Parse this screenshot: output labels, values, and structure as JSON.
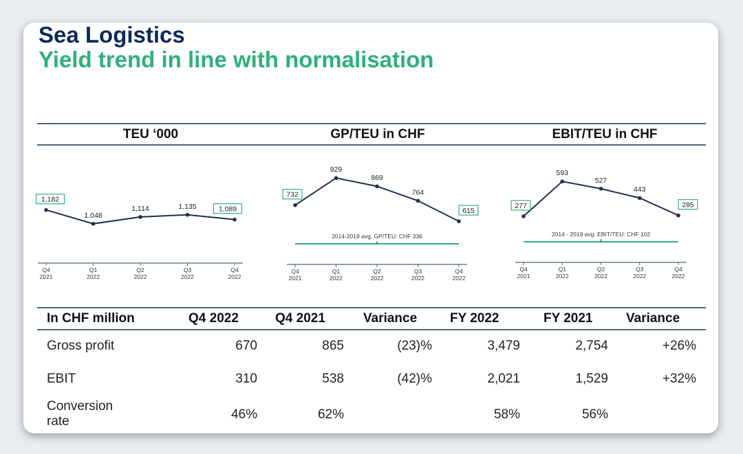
{
  "title": "Sea Logistics",
  "subtitle": "Yield trend in line with normalisation",
  "colors": {
    "title": "#0b2a5b",
    "subtitle": "#2fb17a",
    "line": "#1e2f4d",
    "avg_line": "#2fb17a",
    "box_border": "#2fb17a",
    "axis": "#50647a"
  },
  "chart_data": [
    {
      "type": "line",
      "title": "TEU ‘000",
      "x": [
        "Q4 2021",
        "Q1 2022",
        "Q2 2022",
        "Q3 2022",
        "Q4 2022"
      ],
      "x_ticks": [
        [
          "Q4",
          "2021"
        ],
        [
          "Q1",
          "2022"
        ],
        [
          "Q2",
          "2022"
        ],
        [
          "Q3",
          "2022"
        ],
        [
          "Q4",
          "2022"
        ]
      ],
      "values": [
        1182,
        1048,
        1114,
        1135,
        1089
      ],
      "labels": [
        "1,182",
        "1,048",
        "1,114",
        "1,135",
        "1,089"
      ],
      "boxed": [
        0,
        4
      ],
      "ylim": [
        900,
        1300
      ]
    },
    {
      "type": "line",
      "title": "GP/TEU in CHF",
      "x": [
        "Q4 2021",
        "Q1 2022",
        "Q2 2022",
        "Q3 2022",
        "Q4 2022"
      ],
      "x_ticks": [
        [
          "Q4",
          "2021"
        ],
        [
          "Q1",
          "2022"
        ],
        [
          "Q2",
          "2022"
        ],
        [
          "Q3",
          "2022"
        ],
        [
          "Q4",
          "2022"
        ]
      ],
      "values": [
        732,
        929,
        869,
        764,
        615
      ],
      "labels": [
        "732",
        "929",
        "869",
        "764",
        "615"
      ],
      "boxed": [
        0,
        4
      ],
      "ylim": [
        336,
        1000
      ],
      "reference": {
        "value": 336,
        "label": "2014-2019 avg. GP/TEU: CHF 336"
      }
    },
    {
      "type": "line",
      "title": "EBIT/TEU in CHF",
      "x": [
        "Q4 2021",
        "Q1 2022",
        "Q2 2022",
        "Q3 2022",
        "Q4 2022"
      ],
      "x_ticks": [
        [
          "Q4",
          "2021"
        ],
        [
          "Q1",
          "2022"
        ],
        [
          "Q2",
          "2022"
        ],
        [
          "Q3",
          "2022"
        ],
        [
          "Q4",
          "2022"
        ]
      ],
      "values": [
        277,
        593,
        527,
        443,
        285
      ],
      "labels": [
        "277",
        "593",
        "527",
        "443",
        "285"
      ],
      "boxed": [
        0,
        4
      ],
      "ylim": [
        102,
        650
      ],
      "reference": {
        "value": 102,
        "label": "2014 - 2019 avg. EBIT/TEU: CHF 102"
      }
    }
  ],
  "table": {
    "headers": [
      "In CHF million",
      "Q4 2022",
      "Q4 2021",
      "Variance",
      "FY 2022",
      "FY 2021",
      "Variance"
    ],
    "rows": [
      {
        "label": "Gross profit",
        "cells": [
          "670",
          "865",
          "(23)%",
          "3,479",
          "2,754",
          "+26%"
        ]
      },
      {
        "label": "EBIT",
        "cells": [
          "310",
          "538",
          "(42)%",
          "2,021",
          "1,529",
          "+32%"
        ]
      },
      {
        "label": "Conversion rate",
        "label_lines": [
          "Conversion",
          "rate"
        ],
        "cells": [
          "46%",
          "62%",
          "",
          "58%",
          "56%",
          ""
        ]
      }
    ]
  }
}
